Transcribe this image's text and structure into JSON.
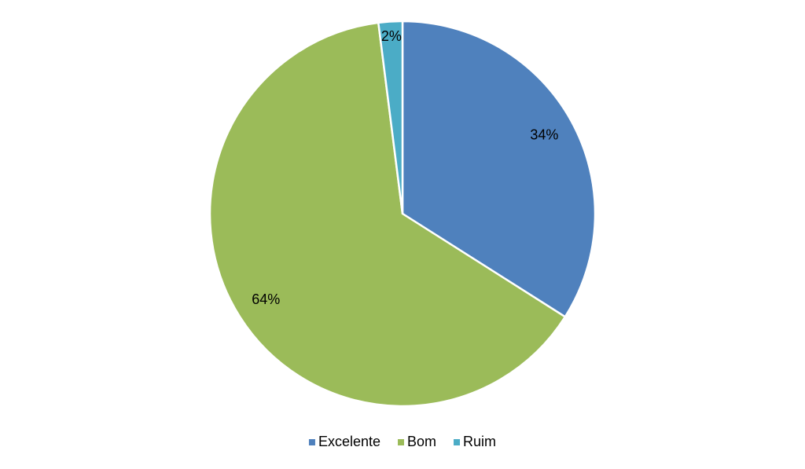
{
  "chart_data": {
    "type": "pie",
    "categories": [
      "Excelente",
      "Bom",
      "Ruim"
    ],
    "values": [
      34,
      64,
      2
    ],
    "value_labels": [
      "34%",
      "64%",
      "2%"
    ],
    "colors": [
      "#4f81bd",
      "#9bbb59",
      "#4bacc6"
    ],
    "legend": "bottom"
  }
}
